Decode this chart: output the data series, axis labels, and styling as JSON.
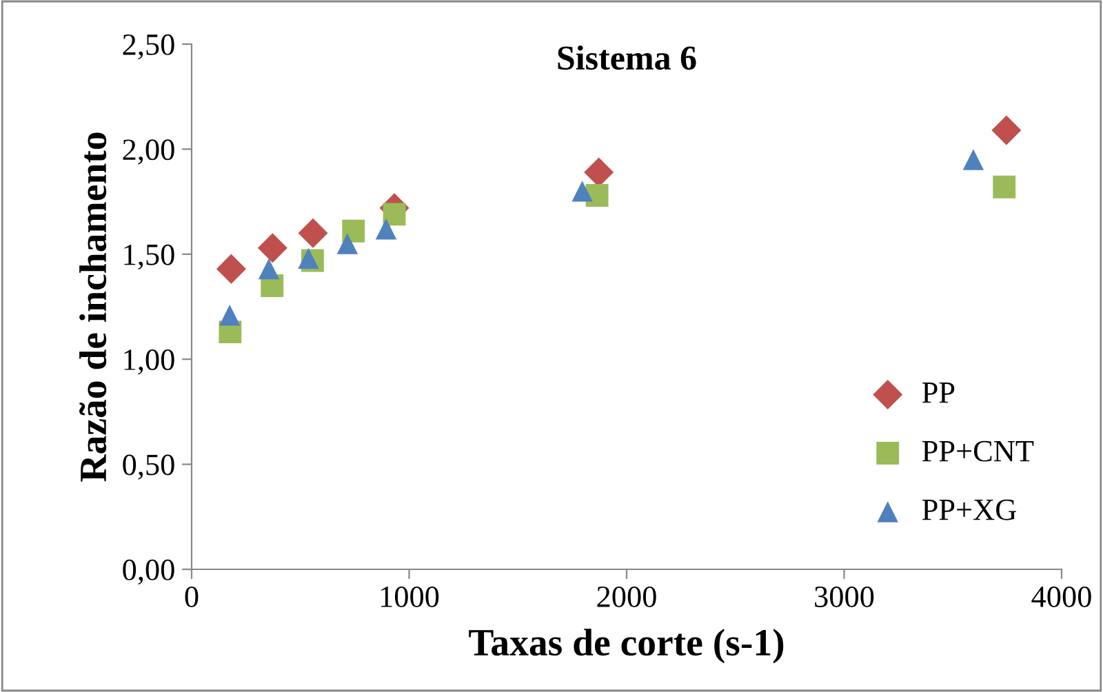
{
  "chart_data": {
    "type": "scatter",
    "title": "Sistema 6",
    "xlabel": "Taxas de corte (s-1)",
    "ylabel": "Razão de inchamento",
    "xlim": [
      0,
      4000
    ],
    "xticks": [
      0,
      1000,
      2000,
      3000,
      4000
    ],
    "ylim": [
      0,
      2.5
    ],
    "yticks": [
      {
        "value": 0,
        "label": "0,00"
      },
      {
        "value": 0.5,
        "label": "0,50"
      },
      {
        "value": 1,
        "label": "1,00"
      },
      {
        "value": 1.5,
        "label": "1,50"
      },
      {
        "value": 2,
        "label": "2,00"
      },
      {
        "value": 2.5,
        "label": "2,50"
      }
    ],
    "grid": false,
    "legend": "right",
    "series": [
      {
        "name": "PP",
        "color": "#c0504d",
        "marker": "diamond",
        "x": [
          182,
          372,
          558,
          932,
          1872,
          3746
        ],
        "values": [
          1.43,
          1.53,
          1.6,
          1.72,
          1.89,
          2.09
        ]
      },
      {
        "name": "PP+CNT",
        "color": "#9bbb59",
        "marker": "square",
        "x": [
          177,
          370,
          556,
          744,
          932,
          1864,
          3736
        ],
        "values": [
          1.13,
          1.35,
          1.47,
          1.61,
          1.69,
          1.78,
          1.82
        ]
      },
      {
        "name": "PP+XG",
        "color": "#4f81bd",
        "marker": "triangle",
        "x": [
          175,
          355,
          537,
          716,
          894,
          1796,
          3594
        ],
        "values": [
          1.21,
          1.43,
          1.48,
          1.55,
          1.62,
          1.8,
          1.95
        ]
      }
    ]
  }
}
